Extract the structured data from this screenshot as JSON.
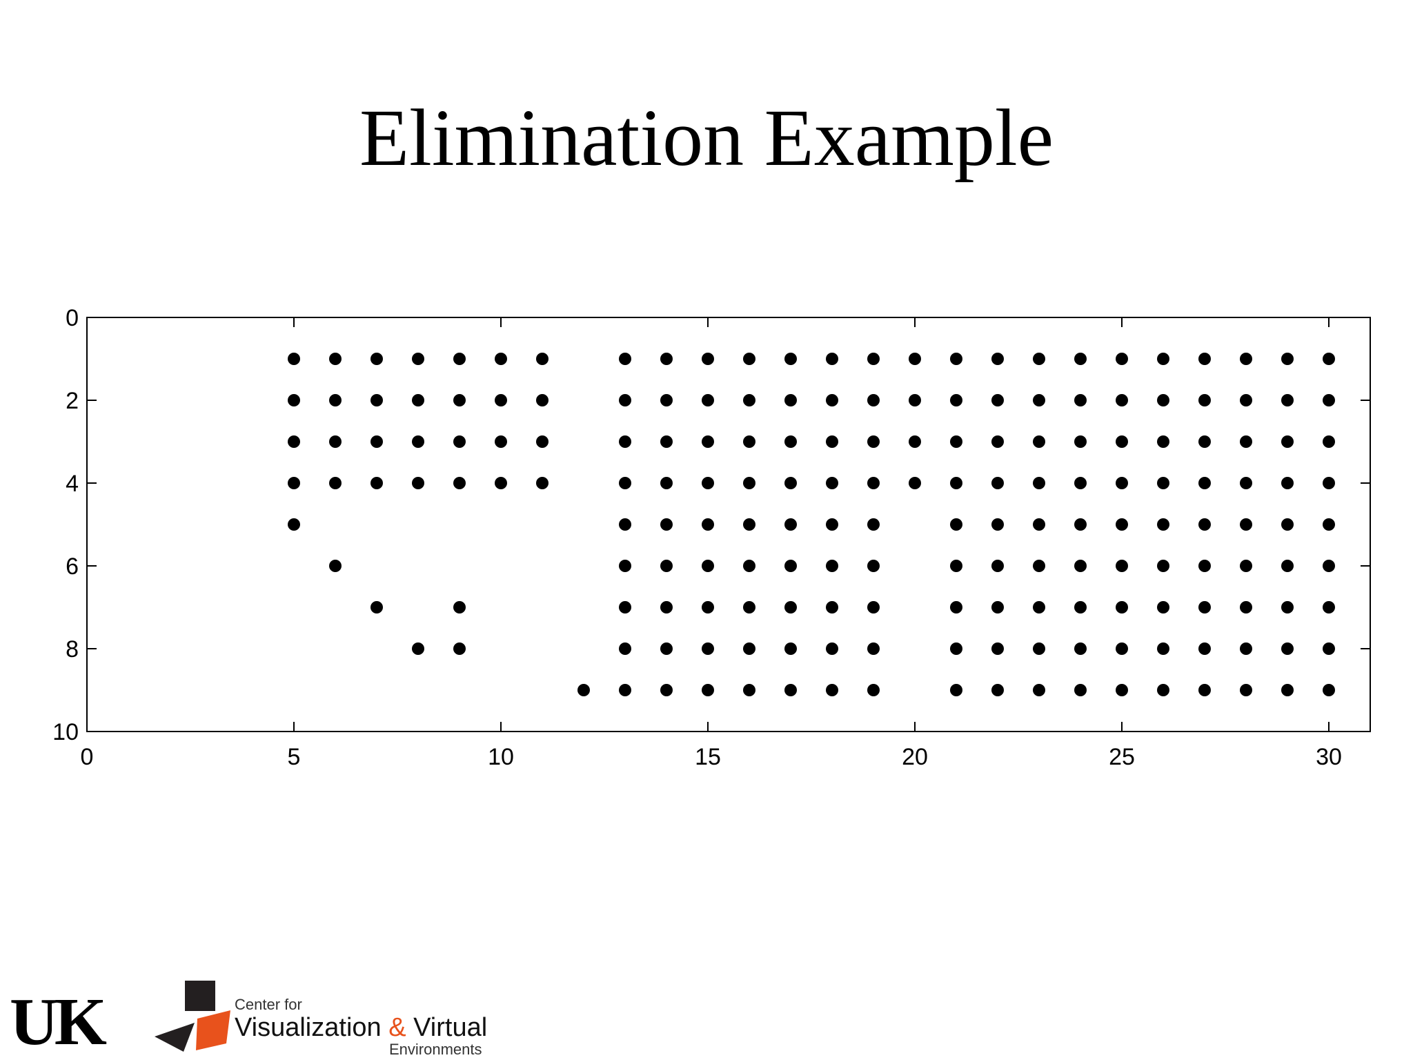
{
  "slide": {
    "title": "Elimination Example"
  },
  "chart_data": {
    "type": "scatter",
    "title": "",
    "xlabel": "",
    "ylabel": "",
    "xlim": [
      0,
      31
    ],
    "ylim": [
      0,
      10
    ],
    "y_reversed": true,
    "grid": false,
    "marker_color": "#000000",
    "x_ticks": [
      0,
      5,
      10,
      15,
      20,
      25,
      30
    ],
    "y_ticks": [
      0,
      2,
      4,
      6,
      8,
      10
    ],
    "points": [
      [
        5,
        1
      ],
      [
        6,
        1
      ],
      [
        7,
        1
      ],
      [
        8,
        1
      ],
      [
        9,
        1
      ],
      [
        10,
        1
      ],
      [
        11,
        1
      ],
      [
        5,
        2
      ],
      [
        6,
        2
      ],
      [
        7,
        2
      ],
      [
        8,
        2
      ],
      [
        9,
        2
      ],
      [
        10,
        2
      ],
      [
        11,
        2
      ],
      [
        5,
        3
      ],
      [
        6,
        3
      ],
      [
        7,
        3
      ],
      [
        8,
        3
      ],
      [
        9,
        3
      ],
      [
        10,
        3
      ],
      [
        11,
        3
      ],
      [
        5,
        4
      ],
      [
        6,
        4
      ],
      [
        7,
        4
      ],
      [
        8,
        4
      ],
      [
        9,
        4
      ],
      [
        10,
        4
      ],
      [
        11,
        4
      ],
      [
        5,
        5
      ],
      [
        6,
        6
      ],
      [
        7,
        7
      ],
      [
        9,
        7
      ],
      [
        8,
        8
      ],
      [
        9,
        8
      ],
      [
        12,
        9
      ],
      [
        13,
        1
      ],
      [
        14,
        1
      ],
      [
        15,
        1
      ],
      [
        16,
        1
      ],
      [
        17,
        1
      ],
      [
        18,
        1
      ],
      [
        19,
        1
      ],
      [
        20,
        1
      ],
      [
        13,
        2
      ],
      [
        14,
        2
      ],
      [
        15,
        2
      ],
      [
        16,
        2
      ],
      [
        17,
        2
      ],
      [
        18,
        2
      ],
      [
        19,
        2
      ],
      [
        20,
        2
      ],
      [
        13,
        3
      ],
      [
        14,
        3
      ],
      [
        15,
        3
      ],
      [
        16,
        3
      ],
      [
        17,
        3
      ],
      [
        18,
        3
      ],
      [
        19,
        3
      ],
      [
        20,
        3
      ],
      [
        13,
        4
      ],
      [
        14,
        4
      ],
      [
        15,
        4
      ],
      [
        16,
        4
      ],
      [
        17,
        4
      ],
      [
        18,
        4
      ],
      [
        19,
        4
      ],
      [
        20,
        4
      ],
      [
        13,
        5
      ],
      [
        14,
        5
      ],
      [
        15,
        5
      ],
      [
        16,
        5
      ],
      [
        17,
        5
      ],
      [
        18,
        5
      ],
      [
        19,
        5
      ],
      [
        13,
        6
      ],
      [
        14,
        6
      ],
      [
        15,
        6
      ],
      [
        16,
        6
      ],
      [
        17,
        6
      ],
      [
        18,
        6
      ],
      [
        19,
        6
      ],
      [
        13,
        7
      ],
      [
        14,
        7
      ],
      [
        15,
        7
      ],
      [
        16,
        7
      ],
      [
        17,
        7
      ],
      [
        18,
        7
      ],
      [
        19,
        7
      ],
      [
        13,
        8
      ],
      [
        14,
        8
      ],
      [
        15,
        8
      ],
      [
        16,
        8
      ],
      [
        17,
        8
      ],
      [
        18,
        8
      ],
      [
        19,
        8
      ],
      [
        13,
        9
      ],
      [
        14,
        9
      ],
      [
        15,
        9
      ],
      [
        16,
        9
      ],
      [
        17,
        9
      ],
      [
        18,
        9
      ],
      [
        19,
        9
      ],
      [
        21,
        1
      ],
      [
        22,
        1
      ],
      [
        23,
        1
      ],
      [
        24,
        1
      ],
      [
        25,
        1
      ],
      [
        26,
        1
      ],
      [
        27,
        1
      ],
      [
        28,
        1
      ],
      [
        29,
        1
      ],
      [
        30,
        1
      ],
      [
        21,
        2
      ],
      [
        22,
        2
      ],
      [
        23,
        2
      ],
      [
        24,
        2
      ],
      [
        25,
        2
      ],
      [
        26,
        2
      ],
      [
        27,
        2
      ],
      [
        28,
        2
      ],
      [
        29,
        2
      ],
      [
        30,
        2
      ],
      [
        21,
        3
      ],
      [
        22,
        3
      ],
      [
        23,
        3
      ],
      [
        24,
        3
      ],
      [
        25,
        3
      ],
      [
        26,
        3
      ],
      [
        27,
        3
      ],
      [
        28,
        3
      ],
      [
        29,
        3
      ],
      [
        30,
        3
      ],
      [
        21,
        4
      ],
      [
        22,
        4
      ],
      [
        23,
        4
      ],
      [
        24,
        4
      ],
      [
        25,
        4
      ],
      [
        26,
        4
      ],
      [
        27,
        4
      ],
      [
        28,
        4
      ],
      [
        29,
        4
      ],
      [
        30,
        4
      ],
      [
        21,
        5
      ],
      [
        22,
        5
      ],
      [
        23,
        5
      ],
      [
        24,
        5
      ],
      [
        25,
        5
      ],
      [
        26,
        5
      ],
      [
        27,
        5
      ],
      [
        28,
        5
      ],
      [
        29,
        5
      ],
      [
        30,
        5
      ],
      [
        21,
        6
      ],
      [
        22,
        6
      ],
      [
        23,
        6
      ],
      [
        24,
        6
      ],
      [
        25,
        6
      ],
      [
        26,
        6
      ],
      [
        27,
        6
      ],
      [
        28,
        6
      ],
      [
        29,
        6
      ],
      [
        30,
        6
      ],
      [
        21,
        7
      ],
      [
        22,
        7
      ],
      [
        23,
        7
      ],
      [
        24,
        7
      ],
      [
        25,
        7
      ],
      [
        26,
        7
      ],
      [
        27,
        7
      ],
      [
        28,
        7
      ],
      [
        29,
        7
      ],
      [
        30,
        7
      ],
      [
        21,
        8
      ],
      [
        22,
        8
      ],
      [
        23,
        8
      ],
      [
        24,
        8
      ],
      [
        25,
        8
      ],
      [
        26,
        8
      ],
      [
        27,
        8
      ],
      [
        28,
        8
      ],
      [
        29,
        8
      ],
      [
        30,
        8
      ],
      [
        21,
        9
      ],
      [
        22,
        9
      ],
      [
        23,
        9
      ],
      [
        24,
        9
      ],
      [
        25,
        9
      ],
      [
        26,
        9
      ],
      [
        27,
        9
      ],
      [
        28,
        9
      ],
      [
        29,
        9
      ],
      [
        30,
        9
      ]
    ]
  },
  "footer": {
    "uk_logo_text": "UK",
    "center_line1": "Center for",
    "center_line2a": "Visualization ",
    "center_amp": "&",
    "center_line2b": " Virtual",
    "center_line3": "Environments",
    "accent_color": "#e8521c"
  }
}
